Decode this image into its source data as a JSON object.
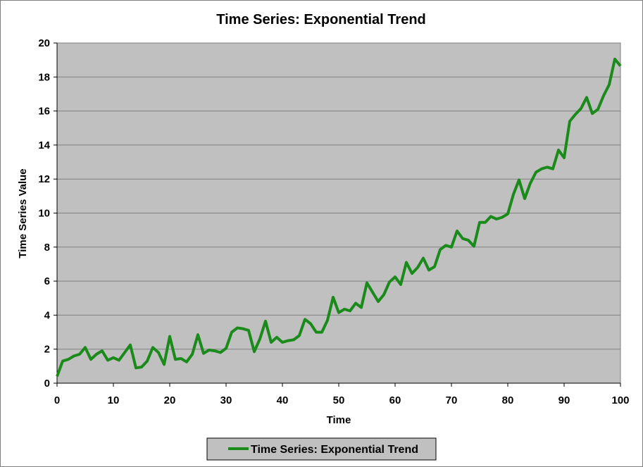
{
  "chart_data": {
    "type": "line",
    "title": "Time Series: Exponential Trend",
    "xlabel": "Time",
    "ylabel": "Time Series Value",
    "xlim": [
      0,
      100
    ],
    "ylim": [
      0,
      20
    ],
    "xticks": [
      0,
      10,
      20,
      30,
      40,
      50,
      60,
      70,
      80,
      90,
      100
    ],
    "yticks": [
      0,
      2,
      4,
      6,
      8,
      10,
      12,
      14,
      16,
      18,
      20
    ],
    "grid": "horizontal",
    "legend_position": "bottom",
    "plot_background": "#c0c0c0",
    "series": [
      {
        "name": "Time Series: Exponential Trend",
        "color": "#1a8a1a",
        "x": [
          0,
          1,
          2,
          3,
          4,
          5,
          6,
          7,
          8,
          9,
          10,
          11,
          12,
          13,
          14,
          15,
          16,
          17,
          18,
          19,
          20,
          21,
          22,
          23,
          24,
          25,
          26,
          27,
          28,
          29,
          30,
          31,
          32,
          33,
          34,
          35,
          36,
          37,
          38,
          39,
          40,
          41,
          42,
          43,
          44,
          45,
          46,
          47,
          48,
          49,
          50,
          51,
          52,
          53,
          54,
          55,
          56,
          57,
          58,
          59,
          60,
          61,
          62,
          63,
          64,
          65,
          66,
          67,
          68,
          69,
          70,
          71,
          72,
          73,
          74,
          75,
          76,
          77,
          78,
          79,
          80,
          81,
          82,
          83,
          84,
          85,
          86,
          87,
          88,
          89,
          90,
          91,
          92,
          93,
          94,
          95,
          96,
          97,
          98,
          99,
          100
        ],
        "values": [
          0.4,
          1.3,
          1.4,
          1.6,
          1.7,
          2.1,
          1.4,
          1.7,
          1.9,
          1.35,
          1.5,
          1.35,
          1.8,
          2.25,
          0.9,
          0.95,
          1.3,
          2.1,
          1.8,
          1.1,
          2.75,
          1.4,
          1.45,
          1.25,
          1.7,
          2.85,
          1.75,
          1.95,
          1.9,
          1.8,
          2.05,
          3.0,
          3.25,
          3.2,
          3.1,
          1.85,
          2.6,
          3.65,
          2.4,
          2.7,
          2.4,
          2.5,
          2.55,
          2.8,
          3.75,
          3.5,
          3.0,
          3.0,
          3.7,
          5.05,
          4.15,
          4.35,
          4.25,
          4.7,
          4.45,
          5.9,
          5.35,
          4.8,
          5.2,
          5.95,
          6.25,
          5.8,
          7.1,
          6.45,
          6.8,
          7.35,
          6.65,
          6.85,
          7.85,
          8.1,
          8.0,
          8.95,
          8.5,
          8.4,
          8.05,
          9.45,
          9.45,
          9.8,
          9.65,
          9.75,
          9.95,
          11.1,
          11.95,
          10.85,
          11.75,
          12.4,
          12.6,
          12.7,
          12.6,
          13.7,
          13.25,
          15.4,
          15.8,
          16.15,
          16.8,
          15.85,
          16.1,
          16.9,
          17.55,
          19.05,
          18.65
        ]
      }
    ]
  }
}
